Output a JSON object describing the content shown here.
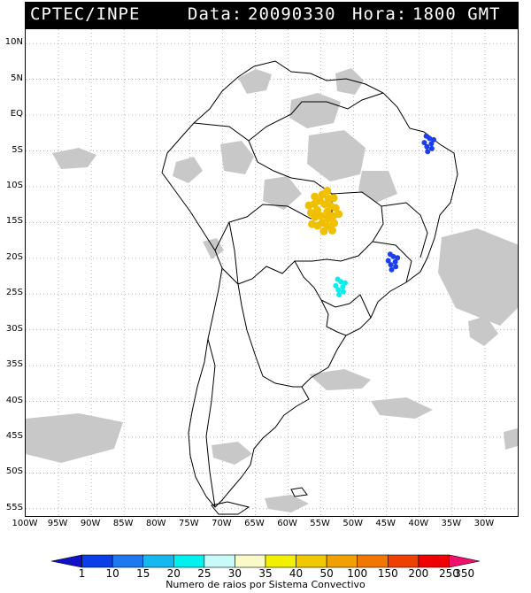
{
  "header": {
    "source": "CPTEC/INPE",
    "date_label": "Data:",
    "date_value": "20090330",
    "time_label": "Hora:",
    "time_value": "1800 GMT"
  },
  "axes": {
    "lat_labels": [
      "10N",
      "5N",
      "EQ",
      "5S",
      "10S",
      "15S",
      "20S",
      "25S",
      "30S",
      "35S",
      "40S",
      "45S",
      "50S",
      "55S"
    ],
    "lon_labels": [
      "100W",
      "95W",
      "90W",
      "85W",
      "80W",
      "75W",
      "70W",
      "65W",
      "60W",
      "55W",
      "50W",
      "45W",
      "40W",
      "35W",
      "30W"
    ]
  },
  "legend": {
    "title": "Numero de raios por Sistema Convectivo",
    "values": [
      "1",
      "10",
      "15",
      "20",
      "25",
      "30",
      "35",
      "40",
      "50",
      "100",
      "150",
      "200",
      "250",
      "350"
    ],
    "colors": [
      "#1010c8",
      "#0a3ee8",
      "#1e78f0",
      "#16b8f0",
      "#00f0f0",
      "#c8fafa",
      "#fafac8",
      "#f0f000",
      "#f0c800",
      "#f0a000",
      "#f07800",
      "#f04000",
      "#f00000",
      "#f0106e"
    ]
  },
  "colors": {
    "cloud": "#c8c8c8",
    "coastline": "#000000",
    "grid": "#9a9a9a",
    "header_bg": "#000000",
    "header_text": "#ffffff"
  },
  "lightning_clusters": [
    {
      "lon": -54.5,
      "lat": -13.5,
      "color": "#f0c000",
      "count_class": "50"
    },
    {
      "lon": -38.5,
      "lat": -4.0,
      "color": "#1a3ef0",
      "count_class": "10"
    },
    {
      "lon": -44.0,
      "lat": -20.5,
      "color": "#1a3ef0",
      "count_class": "10"
    },
    {
      "lon": -52.0,
      "lat": -24.0,
      "color": "#00f0f0",
      "count_class": "25"
    }
  ]
}
